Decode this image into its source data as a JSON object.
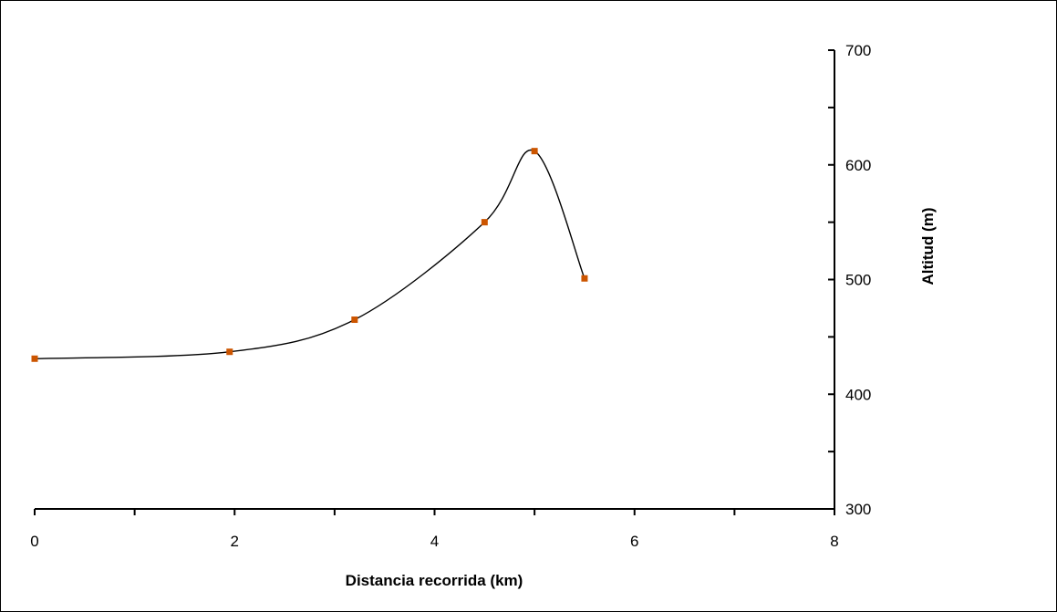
{
  "chart_data": {
    "type": "line",
    "title": "",
    "xlabel": "Distancia recorrida (km)",
    "ylabel": "Altitud (m)",
    "xlim": [
      0,
      8
    ],
    "ylim": [
      300,
      700
    ],
    "x_ticks": [
      0,
      2,
      4,
      6,
      8
    ],
    "x_minor_step": 1,
    "y_ticks": [
      300,
      400,
      500,
      600,
      700
    ],
    "y_minor_step": 50,
    "y_axis_side": "right",
    "grid": false,
    "legend": "none",
    "line_color": "#000000",
    "marker_color": "#cc5500",
    "marker_shape": "square",
    "smoothed": true,
    "series": [
      {
        "x": [
          0,
          1.95,
          3.2,
          4.5,
          5.0,
          5.5
        ],
        "y": [
          431,
          437,
          465,
          550,
          612,
          501
        ]
      }
    ]
  }
}
